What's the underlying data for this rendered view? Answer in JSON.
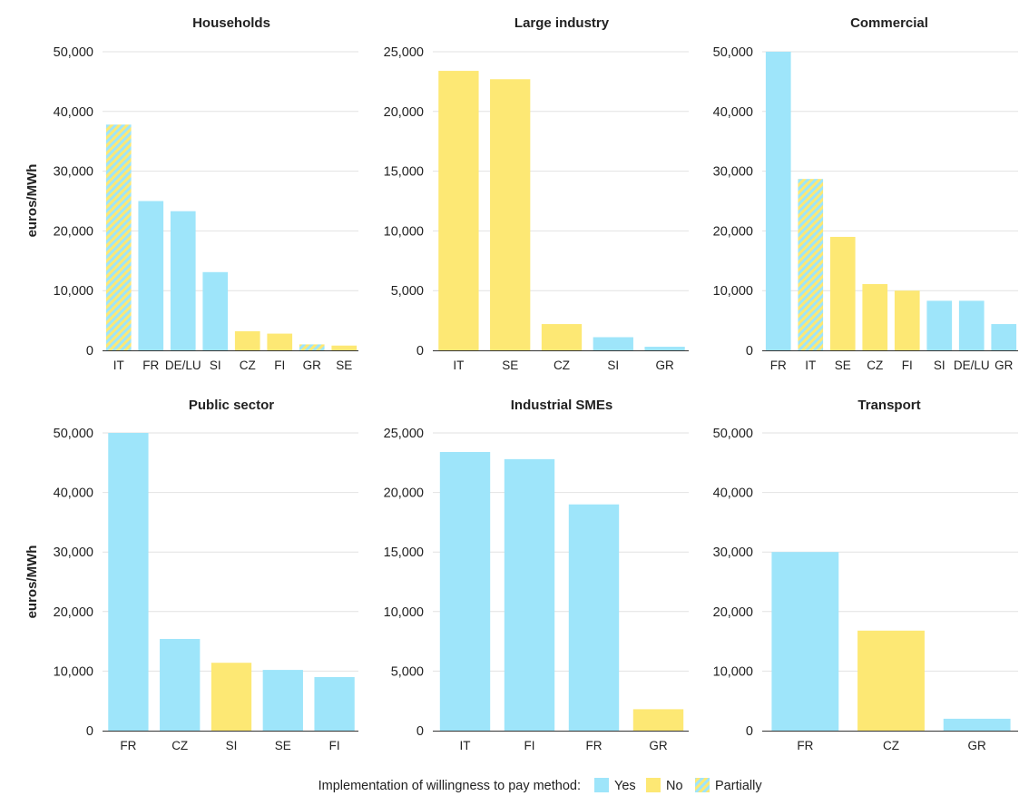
{
  "chart_data": [
    {
      "type": "bar",
      "title": "Households",
      "ylabel": "euros/MWh",
      "ylim": [
        0,
        50000
      ],
      "yticks": [
        "0",
        "10,000",
        "20,000",
        "30,000",
        "40,000",
        "50,000"
      ],
      "categories": [
        "IT",
        "FR",
        "DE/LU",
        "SI",
        "CZ",
        "FI",
        "GR",
        "SE"
      ],
      "values": [
        37800,
        25000,
        23300,
        13100,
        3200,
        2800,
        1000,
        800
      ],
      "status": [
        "Partially",
        "Yes",
        "Yes",
        "Yes",
        "No",
        "No",
        "Partially",
        "No"
      ]
    },
    {
      "type": "bar",
      "title": "Large industry",
      "ylabel": "",
      "ylim": [
        0,
        25000
      ],
      "yticks": [
        "0",
        "5,000",
        "10,000",
        "15,000",
        "20,000",
        "25,000"
      ],
      "categories": [
        "IT",
        "SE",
        "CZ",
        "SI",
        "GR"
      ],
      "values": [
        23400,
        22700,
        2200,
        1100,
        300
      ],
      "status": [
        "No",
        "No",
        "No",
        "Yes",
        "Yes"
      ]
    },
    {
      "type": "bar",
      "title": "Commercial",
      "ylabel": "",
      "ylim": [
        0,
        50000
      ],
      "yticks": [
        "0",
        "10,000",
        "20,000",
        "30,000",
        "40,000",
        "50,000"
      ],
      "categories": [
        "FR",
        "IT",
        "SE",
        "CZ",
        "FI",
        "SI",
        "DE/LU",
        "GR"
      ],
      "values": [
        50000,
        28700,
        19000,
        11100,
        10000,
        8300,
        8300,
        4400
      ],
      "status": [
        "Yes",
        "Partially",
        "No",
        "No",
        "No",
        "Yes",
        "Yes",
        "Yes"
      ]
    },
    {
      "type": "bar",
      "title": "Public sector",
      "ylabel": "euros/MWh",
      "ylim": [
        0,
        50000
      ],
      "yticks": [
        "0",
        "10,000",
        "20,000",
        "30,000",
        "40,000",
        "50,000"
      ],
      "categories": [
        "FR",
        "CZ",
        "SI",
        "SE",
        "FI"
      ],
      "values": [
        50000,
        15400,
        11400,
        10200,
        9000
      ],
      "status": [
        "Yes",
        "Yes",
        "No",
        "Yes",
        "Yes"
      ]
    },
    {
      "type": "bar",
      "title": "Industrial SMEs",
      "ylabel": "",
      "ylim": [
        0,
        25000
      ],
      "yticks": [
        "0",
        "5,000",
        "10,000",
        "15,000",
        "20,000",
        "25,000"
      ],
      "categories": [
        "IT",
        "FI",
        "FR",
        "GR"
      ],
      "values": [
        23400,
        22800,
        19000,
        1800
      ],
      "status": [
        "Yes",
        "Yes",
        "Yes",
        "No"
      ]
    },
    {
      "type": "bar",
      "title": "Transport",
      "ylabel": "",
      "ylim": [
        0,
        50000
      ],
      "yticks": [
        "0",
        "10,000",
        "20,000",
        "30,000",
        "40,000",
        "50,000"
      ],
      "categories": [
        "FR",
        "CZ",
        "GR"
      ],
      "values": [
        30000,
        16800,
        2000
      ],
      "status": [
        "Yes",
        "No",
        "Yes"
      ]
    }
  ],
  "legend": {
    "title": "Implementation of willingness to pay method:",
    "items": [
      {
        "key": "Yes",
        "label": "Yes",
        "color": "#9ee5fa"
      },
      {
        "key": "No",
        "label": "No",
        "color": "#fde874"
      },
      {
        "key": "Partially",
        "label": "Partially",
        "color": "#b9e6a9"
      }
    ]
  },
  "colors": {
    "Yes": "#9ee5fa",
    "No": "#fde874",
    "Partially_a": "#fde874",
    "Partially_b": "#9ee5fa"
  }
}
